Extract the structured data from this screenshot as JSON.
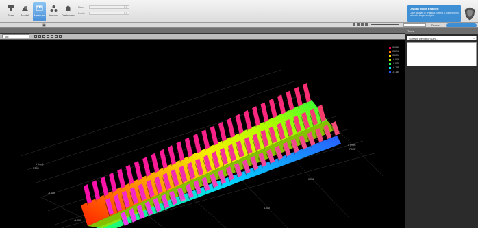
{
  "ribbon": {
    "buttons": [
      {
        "label": "Scan",
        "icon": "scanner-icon"
      },
      {
        "label": "Model",
        "icon": "model-icon"
      },
      {
        "label": "Measure",
        "icon": "measure-icon"
      },
      {
        "label": "Inspect",
        "icon": "inspect-icon"
      },
      {
        "label": "Dashboard",
        "icon": "home-icon"
      }
    ],
    "active_index": 2,
    "status": [
      {
        "label": "Mem",
        "value": "0.0"
      },
      {
        "label": "Points",
        "value": "0.0"
      }
    ]
  },
  "tooltip": {
    "title": "Display Mode Enabled",
    "text": "Color display is enabled. Select a color setting below to begin analysis."
  },
  "toolbar2": {
    "center_glyph": "▣",
    "right_label": "Render"
  },
  "viewport_header": {
    "view_select": "Top"
  },
  "legend": [
    {
      "value": "0.156",
      "color": "#e8004a"
    },
    {
      "value": "0.094",
      "color": "#ff6a00"
    },
    {
      "value": "0.039",
      "color": "#ffd800"
    },
    {
      "value": "-0.016",
      "color": "#b8ff00"
    },
    {
      "value": "-0.070",
      "color": "#22ff44"
    },
    {
      "value": "-0.125",
      "color": "#00e0ff"
    },
    {
      "value": "-0.180",
      "color": "#2255ff"
    }
  ],
  "axes": {
    "left_top": "Y (mm)",
    "left_val": "5.000",
    "left_mid": "-4.000",
    "left_bottom": "-6.000",
    "bottom_mid": "4.500",
    "center": "0.000",
    "right_top": "X (mm)",
    "right_val": "7.000",
    "right_mid": "-6.000"
  },
  "right_panel": {
    "header": "Tools",
    "select_value": "Surface Deviation Dev..."
  }
}
